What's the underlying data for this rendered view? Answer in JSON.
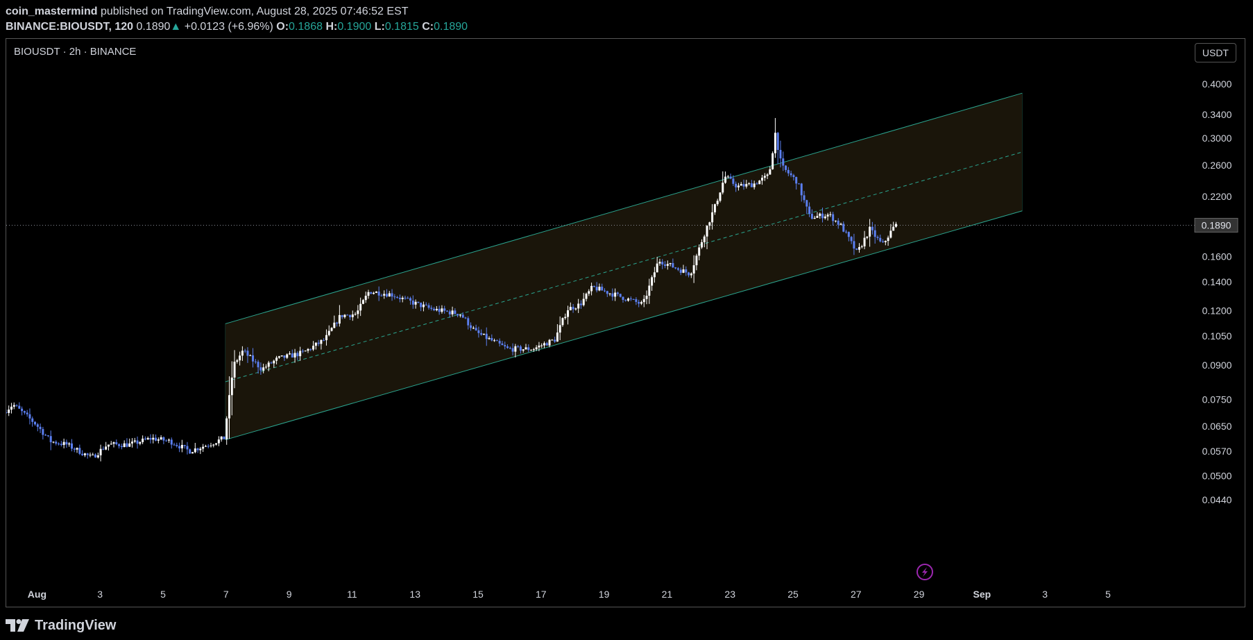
{
  "header": {
    "author": "coin_mastermind",
    "published": "published on TradingView.com, August 28, 2025 07:46:52 EST",
    "symbol_interval": "BINANCE:BIOUSDT, 120",
    "last": "0.1890",
    "change_arrow": "▲",
    "change": "+0.0123 (+6.96%)",
    "o_label": "O:",
    "o": "0.1868",
    "h_label": "H:",
    "h": "0.1900",
    "l_label": "L:",
    "l": "0.1815",
    "c_label": "C:",
    "c": "0.1890"
  },
  "chart": {
    "symbol_label": "BIOUSDT · 2h · BINANCE",
    "currency": "USDT",
    "last_price_label": "0.1890",
    "colors": {
      "up": "#ffffff",
      "down": "#5b7ff0",
      "channel_line": "#2ba58f",
      "channel_fill": "#1a150a",
      "price_line": "#8a8e98",
      "alert_icon": "#9c27b0"
    },
    "alert_icon": "lightning-icon"
  },
  "chart_data": {
    "type": "candlestick",
    "y_scale": "log",
    "ylim": [
      0.044,
      0.43
    ],
    "y_ticks": [
      "0.4000",
      "0.3400",
      "0.3000",
      "0.2600",
      "0.2200",
      "0.1600",
      "0.1400",
      "0.1200",
      "0.1050",
      "0.0900",
      "0.0750",
      "0.0650",
      "0.0570",
      "0.0500",
      "0.0440"
    ],
    "x_ticks": [
      "Aug",
      "3",
      "5",
      "7",
      "9",
      "11",
      "13",
      "15",
      "17",
      "19",
      "21",
      "23",
      "25",
      "27",
      "29",
      "Sep",
      "3",
      "5"
    ],
    "last_price": 0.189,
    "series_anchors": [
      {
        "day": 0.0,
        "price": 0.07
      },
      {
        "day": 0.3,
        "price": 0.073
      },
      {
        "day": 1.0,
        "price": 0.066
      },
      {
        "day": 1.5,
        "price": 0.06
      },
      {
        "day": 2.0,
        "price": 0.059
      },
      {
        "day": 2.8,
        "price": 0.055
      },
      {
        "day": 3.3,
        "price": 0.059
      },
      {
        "day": 4.0,
        "price": 0.059
      },
      {
        "day": 4.7,
        "price": 0.061
      },
      {
        "day": 5.3,
        "price": 0.06
      },
      {
        "day": 5.9,
        "price": 0.057
      },
      {
        "day": 6.5,
        "price": 0.059
      },
      {
        "day": 7.0,
        "price": 0.061
      },
      {
        "day": 7.3,
        "price": 0.09
      },
      {
        "day": 7.6,
        "price": 0.097
      },
      {
        "day": 8.2,
        "price": 0.088
      },
      {
        "day": 8.7,
        "price": 0.093
      },
      {
        "day": 9.5,
        "price": 0.096
      },
      {
        "day": 10.2,
        "price": 0.103
      },
      {
        "day": 10.7,
        "price": 0.117
      },
      {
        "day": 11.2,
        "price": 0.118
      },
      {
        "day": 11.6,
        "price": 0.133
      },
      {
        "day": 12.3,
        "price": 0.131
      },
      {
        "day": 12.9,
        "price": 0.126
      },
      {
        "day": 13.6,
        "price": 0.121
      },
      {
        "day": 14.5,
        "price": 0.118
      },
      {
        "day": 15.0,
        "price": 0.107
      },
      {
        "day": 16.0,
        "price": 0.098
      },
      {
        "day": 16.8,
        "price": 0.098
      },
      {
        "day": 17.5,
        "price": 0.103
      },
      {
        "day": 17.9,
        "price": 0.121
      },
      {
        "day": 18.3,
        "price": 0.124
      },
      {
        "day": 18.7,
        "price": 0.136
      },
      {
        "day": 19.5,
        "price": 0.13
      },
      {
        "day": 20.3,
        "price": 0.124
      },
      {
        "day": 20.8,
        "price": 0.157
      },
      {
        "day": 21.4,
        "price": 0.15
      },
      {
        "day": 21.8,
        "price": 0.146
      },
      {
        "day": 22.3,
        "price": 0.185
      },
      {
        "day": 22.6,
        "price": 0.21
      },
      {
        "day": 22.9,
        "price": 0.245
      },
      {
        "day": 23.3,
        "price": 0.232
      },
      {
        "day": 23.8,
        "price": 0.235
      },
      {
        "day": 24.3,
        "price": 0.246
      },
      {
        "day": 24.5,
        "price": 0.308
      },
      {
        "day": 24.7,
        "price": 0.258
      },
      {
        "day": 25.2,
        "price": 0.238
      },
      {
        "day": 25.6,
        "price": 0.197
      },
      {
        "day": 26.2,
        "price": 0.2
      },
      {
        "day": 26.6,
        "price": 0.188
      },
      {
        "day": 27.1,
        "price": 0.163
      },
      {
        "day": 27.5,
        "price": 0.185
      },
      {
        "day": 27.9,
        "price": 0.17
      },
      {
        "day": 28.3,
        "price": 0.189
      }
    ],
    "channel": {
      "start_day": 7.0,
      "end_day": 32.3,
      "lower_start": 0.0605,
      "lower_end": 0.204,
      "upper_start": 0.112,
      "upper_end": 0.381
    }
  },
  "footer": {
    "logo_text": "TradingView",
    "logo_icon": "tradingview-logo-icon"
  }
}
